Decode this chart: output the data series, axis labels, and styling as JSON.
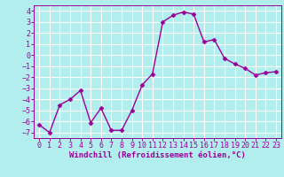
{
  "x": [
    0,
    1,
    2,
    3,
    4,
    5,
    6,
    7,
    8,
    9,
    10,
    11,
    12,
    13,
    14,
    15,
    16,
    17,
    18,
    19,
    20,
    21,
    22,
    23
  ],
  "y": [
    -6.3,
    -7.0,
    -4.5,
    -4.0,
    -3.2,
    -6.1,
    -4.8,
    -6.8,
    -6.8,
    -5.0,
    -2.7,
    -1.7,
    3.0,
    3.6,
    3.9,
    3.7,
    1.2,
    1.4,
    -0.3,
    -0.8,
    -1.2,
    -1.8,
    -1.6,
    -1.5
  ],
  "line_color": "#990099",
  "marker": "D",
  "markersize": 2.5,
  "linewidth": 1.0,
  "bg_color": "#b2eeee",
  "grid_color": "#ffffff",
  "xlabel": "Windchill (Refroidissement éolien,°C)",
  "xlabel_fontsize": 6.5,
  "tick_fontsize": 6.0,
  "ylim": [
    -7.5,
    4.5
  ],
  "xlim": [
    -0.5,
    23.5
  ],
  "yticks": [
    -7,
    -6,
    -5,
    -4,
    -3,
    -2,
    -1,
    0,
    1,
    2,
    3,
    4
  ],
  "xticks": [
    0,
    1,
    2,
    3,
    4,
    5,
    6,
    7,
    8,
    9,
    10,
    11,
    12,
    13,
    14,
    15,
    16,
    17,
    18,
    19,
    20,
    21,
    22,
    23
  ],
  "font_family": "monospace"
}
